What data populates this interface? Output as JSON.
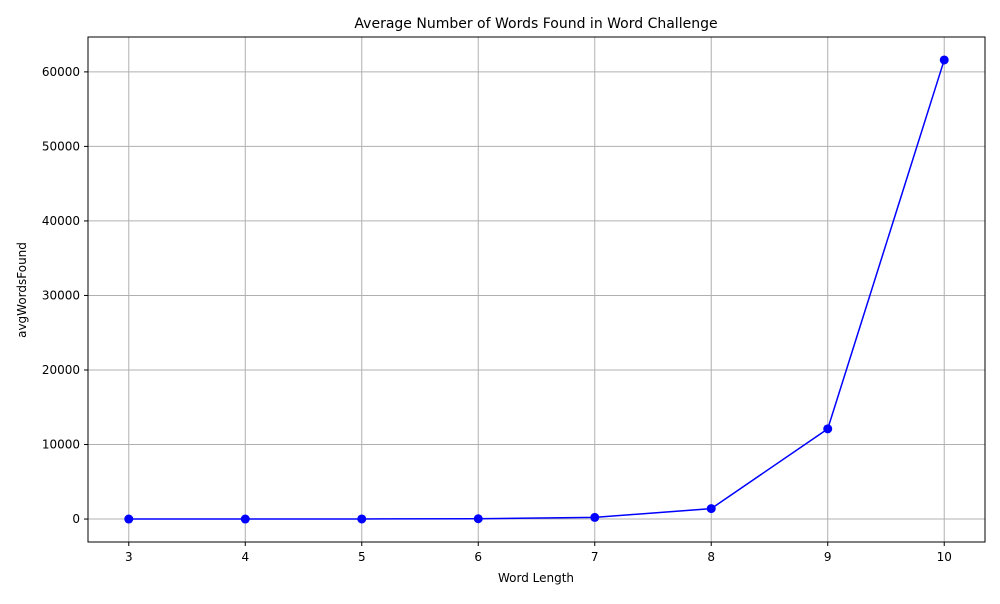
{
  "chart_data": {
    "type": "line",
    "title": "Average Number of Words Found in Word Challenge",
    "xlabel": "Word Length",
    "ylabel": "avgWordsFound",
    "x": [
      3,
      4,
      5,
      6,
      7,
      8,
      9,
      10
    ],
    "series": [
      {
        "values": [
          2,
          5,
          12,
          40,
          220,
          1400,
          12100,
          61600
        ],
        "color": "#0000ff",
        "marker": "circle"
      }
    ],
    "xticks": [
      3,
      4,
      5,
      6,
      7,
      8,
      9,
      10
    ],
    "yticks": [
      0,
      10000,
      20000,
      30000,
      40000,
      50000,
      60000
    ],
    "xlim": [
      2.65,
      10.35
    ],
    "ylim": [
      -3080,
      64680
    ],
    "grid": true,
    "legend": "none",
    "colors": {
      "line": "#0000ff",
      "grid": "#b0b0b0",
      "axis": "#000000"
    }
  }
}
